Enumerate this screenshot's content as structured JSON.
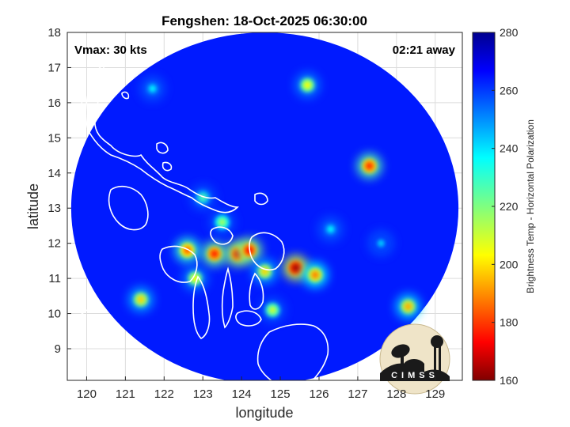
{
  "chart_data": {
    "type": "heatmap",
    "title": "Fengshen: 18-Oct-2025 06:30:00",
    "annotations": {
      "vmax": "Vmax: 30 kts",
      "time_away": "02:21 away"
    },
    "xlabel": "longitude",
    "ylabel": "latitude",
    "xlim": [
      119.5,
      129.7
    ],
    "ylim": [
      8.1,
      18
    ],
    "xticks": [
      120,
      121,
      122,
      123,
      124,
      125,
      126,
      127,
      128,
      129
    ],
    "yticks": [
      9,
      10,
      11,
      12,
      13,
      14,
      15,
      16,
      17,
      18
    ],
    "grid": true,
    "colorbar": {
      "label": "Brightness Temp - Horizontal Polarization",
      "min": 160,
      "max": 280,
      "ticks": [
        160,
        180,
        200,
        220,
        240,
        260,
        280
      ],
      "colormap": "jet"
    },
    "swath": {
      "center_lon": 124.6,
      "center_lat": 13.0,
      "radius_deg": 5.0,
      "background_value": 262
    },
    "cold_features": [
      {
        "lon": 125.4,
        "lat": 11.3,
        "value": 165
      },
      {
        "lon": 123.9,
        "lat": 11.7,
        "value": 172
      },
      {
        "lon": 124.2,
        "lat": 11.8,
        "value": 175
      },
      {
        "lon": 123.3,
        "lat": 11.7,
        "value": 178
      },
      {
        "lon": 122.6,
        "lat": 11.8,
        "value": 185
      },
      {
        "lon": 125.9,
        "lat": 11.1,
        "value": 190
      },
      {
        "lon": 124.6,
        "lat": 11.2,
        "value": 200
      },
      {
        "lon": 127.3,
        "lat": 14.2,
        "value": 180
      },
      {
        "lon": 128.3,
        "lat": 10.2,
        "value": 195
      },
      {
        "lon": 122.8,
        "lat": 11.0,
        "value": 205
      },
      {
        "lon": 121.4,
        "lat": 10.4,
        "value": 200
      },
      {
        "lon": 124.8,
        "lat": 10.1,
        "value": 210
      },
      {
        "lon": 123.5,
        "lat": 12.6,
        "value": 215
      },
      {
        "lon": 125.7,
        "lat": 16.5,
        "value": 205
      },
      {
        "lon": 123.0,
        "lat": 13.3,
        "value": 225
      },
      {
        "lon": 126.3,
        "lat": 12.4,
        "value": 235
      },
      {
        "lon": 121.7,
        "lat": 16.4,
        "value": 235
      },
      {
        "lon": 127.6,
        "lat": 12.0,
        "value": 240
      }
    ],
    "logo_text": "CIMSS"
  }
}
